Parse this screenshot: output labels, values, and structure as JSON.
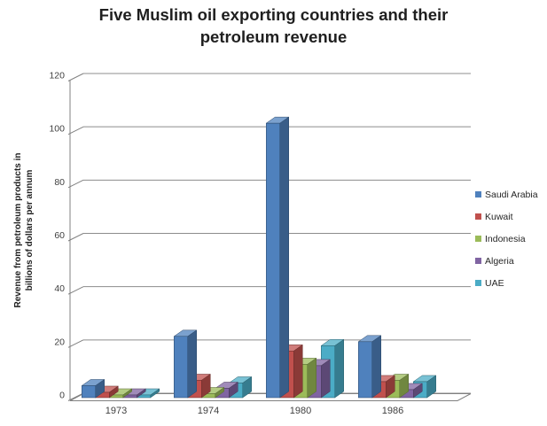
{
  "chart_data": {
    "type": "bar",
    "style": "3d-clustered-column",
    "title": "Five Muslim oil exporting countries and their petroleum revenue",
    "title_lines": [
      "Five Muslim oil exporting countries and their",
      "petroleum revenue"
    ],
    "ylabel": "Revenue from petroleum products in billions of dollars per annum",
    "ylabel_lines": [
      "Revenue from petroleum products in",
      "billions of dollars per annum"
    ],
    "xlabel": "",
    "categories": [
      "1973",
      "1974",
      "1980",
      "1986"
    ],
    "series": [
      {
        "name": "Saudi Arabia",
        "color": "#4F81BD",
        "values": [
          4.5,
          23,
          103,
          21
        ]
      },
      {
        "name": "Kuwait",
        "color": "#C0504D",
        "values": [
          2,
          6.5,
          17.5,
          6
        ]
      },
      {
        "name": "Indonesia",
        "color": "#9BBB59",
        "values": [
          1,
          1.5,
          12.5,
          6.5
        ]
      },
      {
        "name": "Algeria",
        "color": "#8064A2",
        "values": [
          1,
          3.5,
          12,
          3
        ]
      },
      {
        "name": "UAE",
        "color": "#4BACC6",
        "values": [
          1,
          5.5,
          19.5,
          6
        ]
      }
    ],
    "ylim": [
      0,
      120
    ],
    "y_ticks": [
      0,
      20,
      40,
      60,
      80,
      100,
      120
    ],
    "grid": true,
    "legend_position": "right",
    "line_color": "#8C8C8C",
    "axis_color": "#808080",
    "tick_text_color": "#3F3F3F"
  }
}
